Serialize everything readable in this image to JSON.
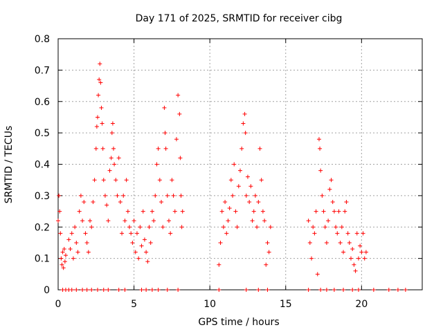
{
  "chart_data": {
    "type": "scatter",
    "title": "Day 171 of 2025, SRMTID for receiver cibg",
    "xlabel": "GPS time / hours",
    "ylabel": "SRMTID / TECUs",
    "xlim": [
      0,
      24
    ],
    "ylim": [
      0,
      0.8
    ],
    "grid": true,
    "x_ticks": [
      0,
      5,
      10,
      15,
      20
    ],
    "x_tick_labels": [
      "0",
      "5",
      "10",
      "15",
      "20"
    ],
    "y_ticks": [
      0,
      0.1,
      0.2,
      0.3,
      0.4,
      0.5,
      0.6,
      0.7,
      0.8
    ],
    "y_tick_labels": [
      "0",
      "0.1",
      "0.2",
      "0.3",
      "0.4",
      "0.5",
      "0.6",
      "0.7",
      "0.8"
    ],
    "marker": "+",
    "color": "#ff0000",
    "series": [
      {
        "name": "SRMTID",
        "points": [
          [
            0.0,
            0.22
          ],
          [
            0.05,
            0.3
          ],
          [
            0.1,
            0.25
          ],
          [
            0.15,
            0.18
          ],
          [
            0.2,
            0.1
          ],
          [
            0.25,
            0.08
          ],
          [
            0.3,
            0.12
          ],
          [
            0.35,
            0.07
          ],
          [
            0.4,
            0.13
          ],
          [
            0.45,
            0.09
          ],
          [
            0.5,
            0.11
          ],
          [
            0.7,
            0.16
          ],
          [
            0.8,
            0.13
          ],
          [
            0.9,
            0.18
          ],
          [
            1.0,
            0.1
          ],
          [
            1.1,
            0.2
          ],
          [
            1.2,
            0.15
          ],
          [
            1.3,
            0.12
          ],
          [
            1.4,
            0.25
          ],
          [
            1.5,
            0.3
          ],
          [
            1.6,
            0.22
          ],
          [
            1.7,
            0.28
          ],
          [
            1.8,
            0.18
          ],
          [
            1.9,
            0.15
          ],
          [
            2.0,
            0.12
          ],
          [
            2.1,
            0.22
          ],
          [
            2.2,
            0.2
          ],
          [
            2.3,
            0.28
          ],
          [
            2.4,
            0.35
          ],
          [
            2.5,
            0.45
          ],
          [
            2.55,
            0.52
          ],
          [
            2.6,
            0.55
          ],
          [
            2.65,
            0.62
          ],
          [
            2.7,
            0.67
          ],
          [
            2.75,
            0.72
          ],
          [
            2.8,
            0.66
          ],
          [
            2.85,
            0.58
          ],
          [
            2.9,
            0.53
          ],
          [
            2.95,
            0.45
          ],
          [
            3.0,
            0.35
          ],
          [
            3.1,
            0.3
          ],
          [
            3.2,
            0.27
          ],
          [
            3.3,
            0.22
          ],
          [
            3.4,
            0.38
          ],
          [
            3.5,
            0.42
          ],
          [
            3.55,
            0.5
          ],
          [
            3.6,
            0.53
          ],
          [
            3.65,
            0.45
          ],
          [
            3.7,
            0.4
          ],
          [
            3.8,
            0.35
          ],
          [
            3.9,
            0.3
          ],
          [
            4.0,
            0.42
          ],
          [
            4.1,
            0.28
          ],
          [
            4.2,
            0.18
          ],
          [
            4.3,
            0.3
          ],
          [
            4.4,
            0.22
          ],
          [
            4.5,
            0.35
          ],
          [
            4.6,
            0.25
          ],
          [
            4.7,
            0.2
          ],
          [
            4.8,
            0.18
          ],
          [
            4.9,
            0.15
          ],
          [
            5.0,
            0.22
          ],
          [
            5.1,
            0.12
          ],
          [
            5.2,
            0.18
          ],
          [
            5.3,
            0.1
          ],
          [
            5.4,
            0.2
          ],
          [
            5.5,
            0.14
          ],
          [
            5.6,
            0.25
          ],
          [
            5.7,
            0.16
          ],
          [
            5.8,
            0.12
          ],
          [
            5.9,
            0.09
          ],
          [
            6.0,
            0.2
          ],
          [
            6.1,
            0.15
          ],
          [
            6.2,
            0.25
          ],
          [
            6.3,
            0.22
          ],
          [
            6.4,
            0.3
          ],
          [
            6.5,
            0.4
          ],
          [
            6.6,
            0.45
          ],
          [
            6.7,
            0.35
          ],
          [
            6.8,
            0.28
          ],
          [
            6.9,
            0.2
          ],
          [
            7.0,
            0.58
          ],
          [
            7.05,
            0.5
          ],
          [
            7.1,
            0.45
          ],
          [
            7.2,
            0.3
          ],
          [
            7.3,
            0.22
          ],
          [
            7.4,
            0.18
          ],
          [
            7.5,
            0.35
          ],
          [
            7.6,
            0.3
          ],
          [
            7.7,
            0.25
          ],
          [
            7.8,
            0.48
          ],
          [
            7.9,
            0.62
          ],
          [
            8.0,
            0.56
          ],
          [
            8.05,
            0.42
          ],
          [
            8.1,
            0.3
          ],
          [
            8.15,
            0.2
          ],
          [
            8.2,
            0.25
          ],
          [
            10.6,
            0.08
          ],
          [
            10.7,
            0.15
          ],
          [
            10.8,
            0.25
          ],
          [
            10.9,
            0.2
          ],
          [
            11.0,
            0.28
          ],
          [
            11.1,
            0.18
          ],
          [
            11.2,
            0.22
          ],
          [
            11.3,
            0.26
          ],
          [
            11.4,
            0.35
          ],
          [
            11.5,
            0.3
          ],
          [
            11.6,
            0.4
          ],
          [
            11.7,
            0.25
          ],
          [
            11.8,
            0.2
          ],
          [
            11.9,
            0.33
          ],
          [
            12.0,
            0.38
          ],
          [
            12.1,
            0.45
          ],
          [
            12.2,
            0.53
          ],
          [
            12.3,
            0.56
          ],
          [
            12.35,
            0.5
          ],
          [
            12.4,
            0.3
          ],
          [
            12.5,
            0.36
          ],
          [
            12.6,
            0.28
          ],
          [
            12.7,
            0.33
          ],
          [
            12.8,
            0.22
          ],
          [
            12.9,
            0.25
          ],
          [
            13.0,
            0.3
          ],
          [
            13.1,
            0.2
          ],
          [
            13.2,
            0.28
          ],
          [
            13.3,
            0.45
          ],
          [
            13.4,
            0.35
          ],
          [
            13.5,
            0.25
          ],
          [
            13.6,
            0.22
          ],
          [
            13.7,
            0.08
          ],
          [
            13.8,
            0.15
          ],
          [
            13.9,
            0.12
          ],
          [
            14.0,
            0.2
          ],
          [
            16.5,
            0.22
          ],
          [
            16.6,
            0.15
          ],
          [
            16.7,
            0.1
          ],
          [
            16.8,
            0.2
          ],
          [
            16.9,
            0.18
          ],
          [
            17.0,
            0.25
          ],
          [
            17.1,
            0.05
          ],
          [
            17.2,
            0.48
          ],
          [
            17.25,
            0.45
          ],
          [
            17.3,
            0.38
          ],
          [
            17.4,
            0.3
          ],
          [
            17.5,
            0.25
          ],
          [
            17.6,
            0.2
          ],
          [
            17.7,
            0.15
          ],
          [
            17.8,
            0.22
          ],
          [
            17.9,
            0.32
          ],
          [
            18.0,
            0.35
          ],
          [
            18.1,
            0.28
          ],
          [
            18.2,
            0.25
          ],
          [
            18.3,
            0.2
          ],
          [
            18.4,
            0.18
          ],
          [
            18.5,
            0.25
          ],
          [
            18.6,
            0.15
          ],
          [
            18.7,
            0.2
          ],
          [
            18.8,
            0.12
          ],
          [
            18.9,
            0.25
          ],
          [
            19.0,
            0.28
          ],
          [
            19.1,
            0.18
          ],
          [
            19.2,
            0.15
          ],
          [
            19.3,
            0.1
          ],
          [
            19.4,
            0.13
          ],
          [
            19.5,
            0.08
          ],
          [
            19.6,
            0.06
          ],
          [
            19.7,
            0.18
          ],
          [
            19.8,
            0.1
          ],
          [
            19.9,
            0.14
          ],
          [
            20.0,
            0.12
          ],
          [
            20.1,
            0.18
          ],
          [
            20.2,
            0.1
          ],
          [
            20.3,
            0.12
          ],
          [
            0.3,
            0
          ],
          [
            0.5,
            0
          ],
          [
            0.7,
            0
          ],
          [
            0.9,
            0
          ],
          [
            1.2,
            0
          ],
          [
            1.6,
            0
          ],
          [
            1.9,
            0
          ],
          [
            2.2,
            0
          ],
          [
            2.6,
            0
          ],
          [
            3.0,
            0
          ],
          [
            3.3,
            0
          ],
          [
            4.0,
            0
          ],
          [
            4.4,
            0
          ],
          [
            5.5,
            0
          ],
          [
            5.8,
            0
          ],
          [
            6.2,
            0
          ],
          [
            6.6,
            0
          ],
          [
            7.2,
            0
          ],
          [
            7.9,
            0
          ],
          [
            10.6,
            0
          ],
          [
            12.4,
            0
          ],
          [
            13.2,
            0
          ],
          [
            13.8,
            0
          ],
          [
            16.5,
            0
          ],
          [
            17.3,
            0
          ],
          [
            17.7,
            0
          ],
          [
            18.2,
            0
          ],
          [
            18.8,
            0
          ],
          [
            19.4,
            0
          ],
          [
            19.8,
            0
          ],
          [
            20.8,
            0
          ],
          [
            21.8,
            0
          ],
          [
            22.4,
            0
          ],
          [
            22.9,
            0
          ]
        ]
      }
    ]
  }
}
